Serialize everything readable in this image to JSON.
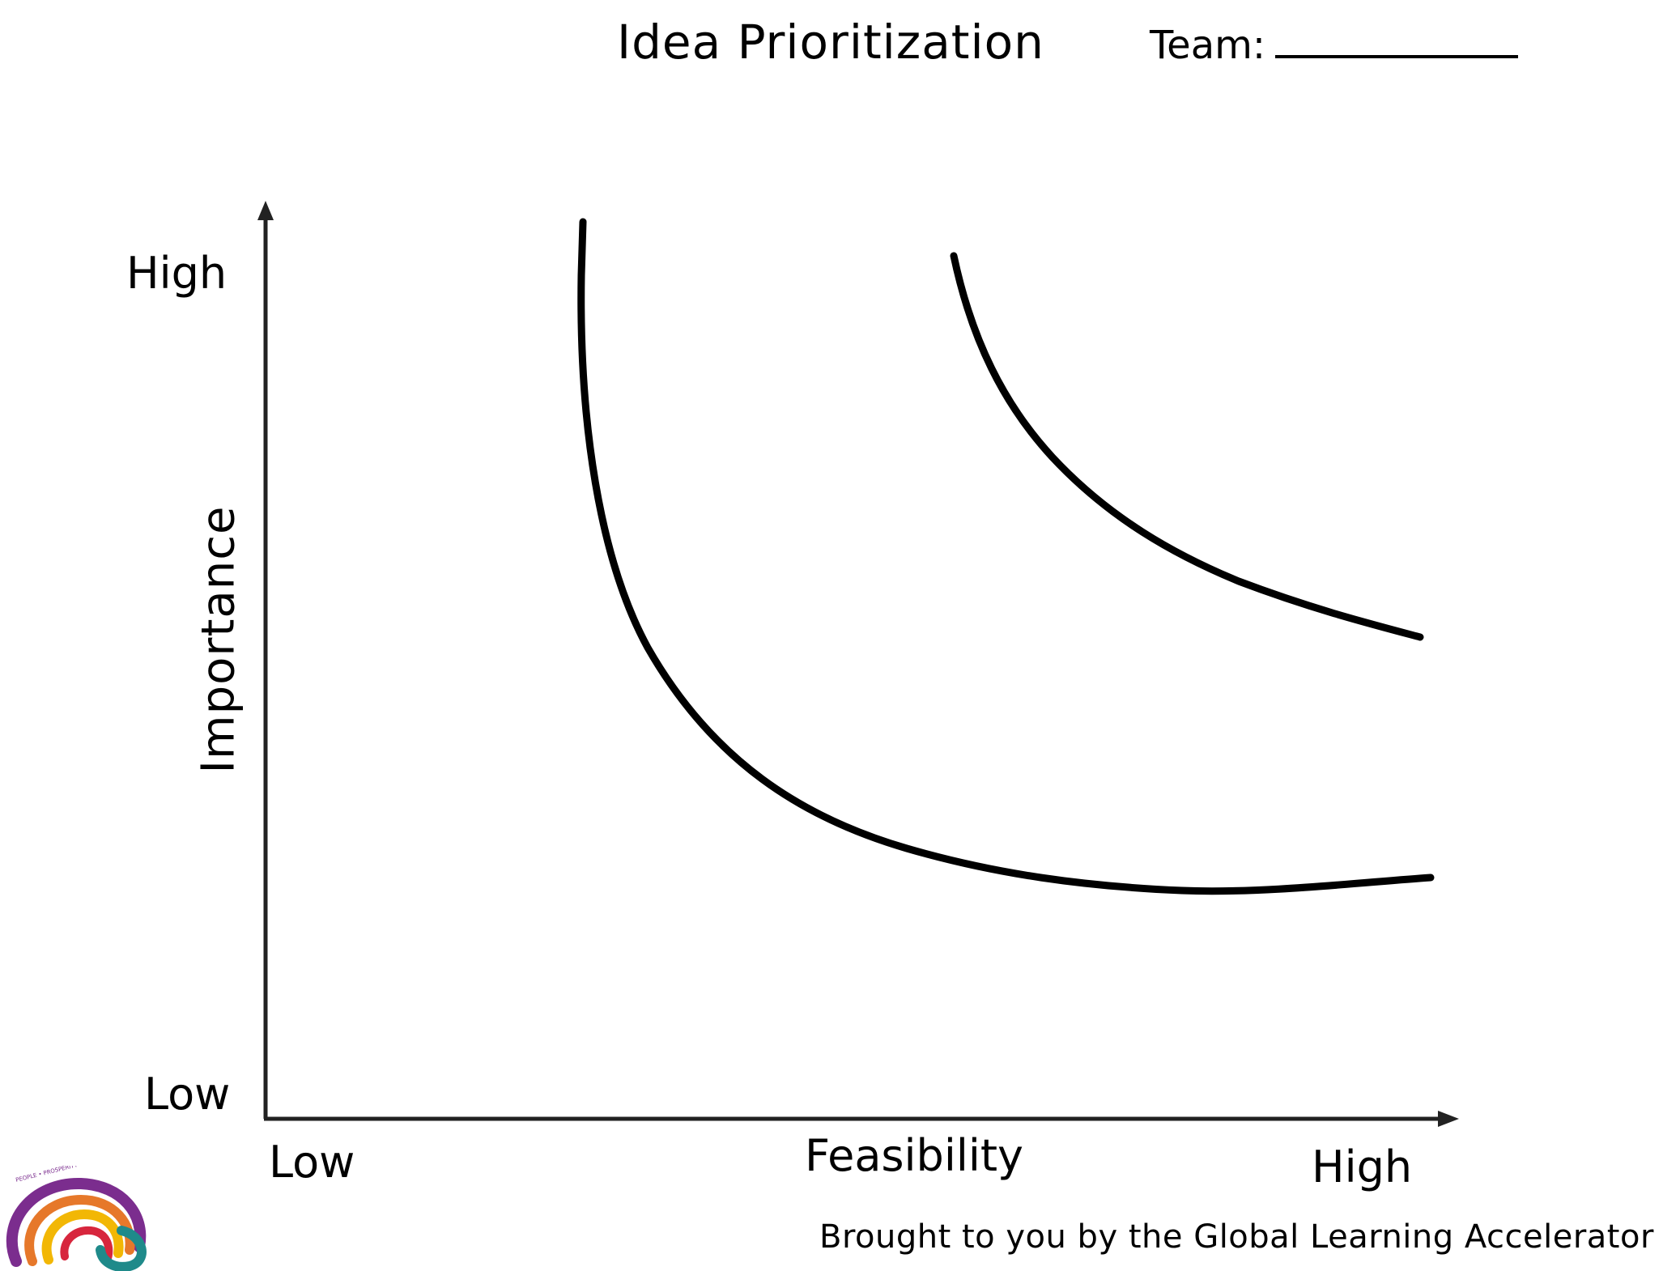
{
  "header": {
    "title": "Idea Prioritization",
    "team_label": "Team:"
  },
  "axes": {
    "y_title": "Importance",
    "y_high": "High",
    "y_low": "Low",
    "x_title": "Feasibility",
    "x_low": "Low",
    "x_high": "High"
  },
  "curves": [
    {
      "id": "lower-curve",
      "shape": "convex-decreasing"
    },
    {
      "id": "upper-curve",
      "shape": "convex-decreasing"
    }
  ],
  "footer": {
    "credit": "Brought to you by the Global Learning Accelerator",
    "logo_text": "PEOPLE • PROSPERITY • HUMANITY"
  },
  "colors": {
    "ink": "#000000",
    "logo_purple": "#7b2d8e",
    "logo_orange": "#e6782a",
    "logo_yellow": "#f2b705",
    "logo_red": "#d7263d",
    "logo_teal": "#1f8a8a"
  }
}
